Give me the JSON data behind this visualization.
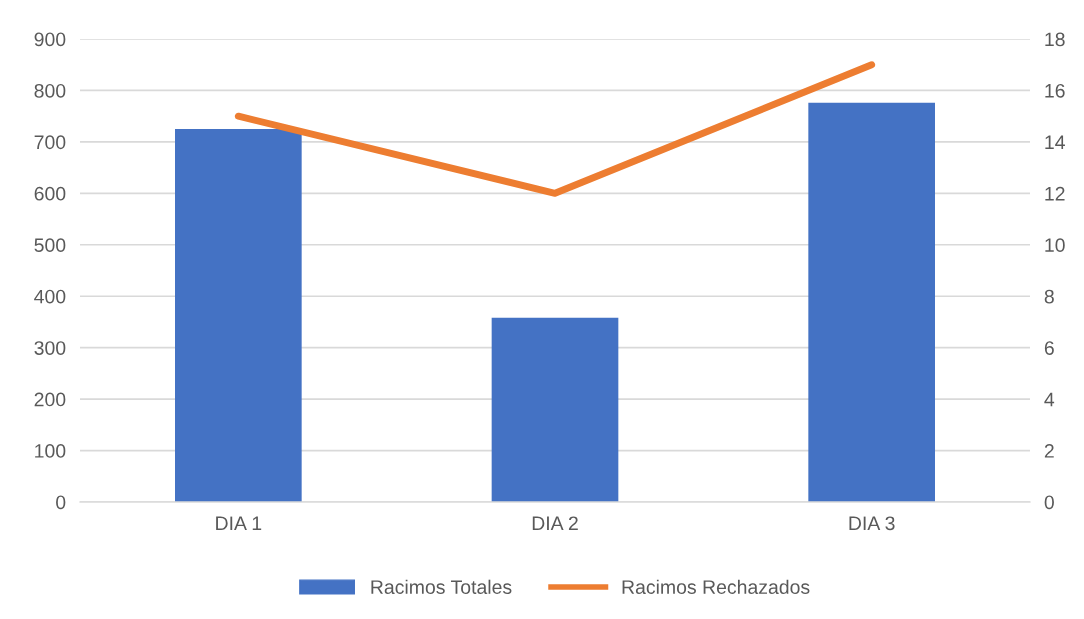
{
  "chart_data": {
    "type": "bar",
    "categories": [
      "DIA 1",
      "DIA 2",
      "DIA 3"
    ],
    "series": [
      {
        "name": "Racimos Totales",
        "color": "#4472c4",
        "values": [
          725,
          358,
          776
        ]
      },
      {
        "name": "Racimos Rechazados",
        "color": "#ed7d31",
        "type": "line",
        "axis": "y2",
        "values": [
          15,
          12,
          17
        ]
      }
    ],
    "ylim": [
      0,
      900
    ],
    "yticks": [
      0,
      100,
      200,
      300,
      400,
      500,
      600,
      700,
      800,
      900
    ],
    "y2lim": [
      0,
      18
    ],
    "y2ticks": [
      0,
      2,
      4,
      6,
      8,
      10,
      12,
      14,
      16,
      18
    ],
    "grid": "y",
    "legend": "bottom",
    "marker": "none",
    "line_style": "solid"
  }
}
